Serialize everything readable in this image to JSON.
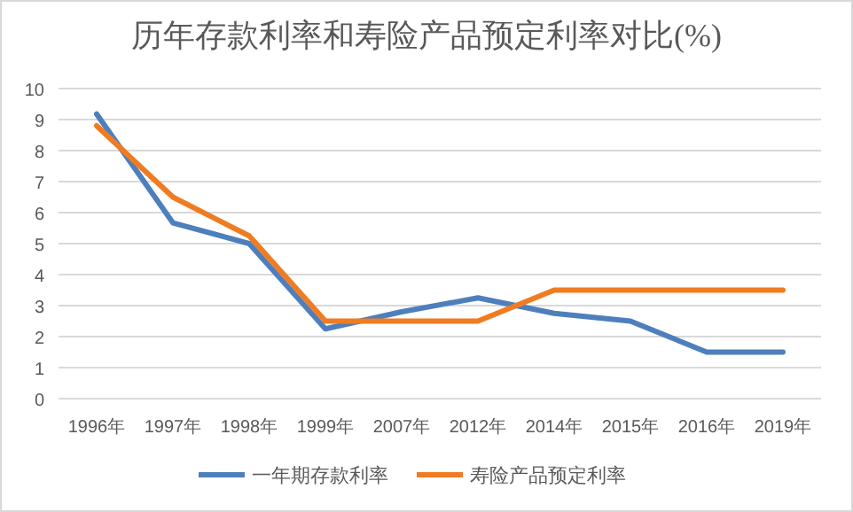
{
  "chart_data": {
    "type": "line",
    "title": "历年存款利率和寿险产品预定利率对比(%)",
    "categories": [
      "1996年",
      "1997年",
      "1998年",
      "1999年",
      "2007年",
      "2012年",
      "2014年",
      "2015年",
      "2016年",
      "2019年"
    ],
    "series": [
      {
        "name": "一年期存款利率",
        "color": "#4e7fbd",
        "values": [
          9.18,
          5.67,
          5.0,
          2.25,
          2.8,
          3.25,
          2.75,
          2.5,
          1.5,
          1.5
        ]
      },
      {
        "name": "寿险产品预定利率",
        "color": "#f07c22",
        "values": [
          8.8,
          6.5,
          5.25,
          2.5,
          2.5,
          2.5,
          3.5,
          3.5,
          3.5,
          3.5
        ]
      }
    ],
    "ylim": [
      0,
      10
    ],
    "yticks": [
      0,
      1,
      2,
      3,
      4,
      5,
      6,
      7,
      8,
      9,
      10
    ],
    "grid": "y",
    "legend": "bottom",
    "marker": "none",
    "line_style": "solid"
  }
}
